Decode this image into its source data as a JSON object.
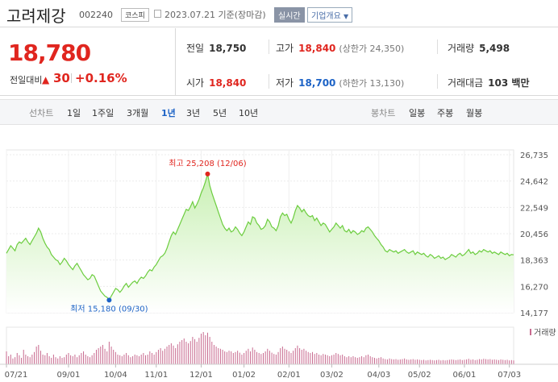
{
  "header": {
    "company_name": "고려제강",
    "code": "002240",
    "market": "코스피",
    "date": "2023.07.21 기준(장마감)",
    "realtime_label": "실시간",
    "company_info_label": "기업개요"
  },
  "summary": {
    "current_price": "18,780",
    "change_label": "전일대비",
    "change_value": "30",
    "change_pct": "+0.16%",
    "prev_close_label": "전일",
    "prev_close": "18,750",
    "high_label": "고가",
    "high": "18,840",
    "upper_limit": "(상한가 24,350)",
    "volume_label": "거래량",
    "volume": "5,498",
    "open_label": "시가",
    "open": "18,840",
    "low_label": "저가",
    "low": "18,700",
    "lower_limit": "(하한가 13,130)",
    "amount_label": "거래대금",
    "amount": "103 백만"
  },
  "period_bar": {
    "line_title": "선차트",
    "line_periods": [
      "1일",
      "1주일",
      "3개월",
      "1년",
      "3년",
      "5년",
      "10년"
    ],
    "active": "1년",
    "candle_title": "봉차트",
    "candle_periods": [
      "일봉",
      "주봉",
      "월봉"
    ]
  },
  "colors": {
    "up": "#e0261f",
    "down": "#1d63c6",
    "line": "#6ccd3f",
    "fill_top": "#c9f0b4",
    "fill_bottom": "#ffffff",
    "volume_bar": "#c86a8f"
  },
  "chart_data": {
    "type": "area",
    "title": "",
    "xlabel": "",
    "ylabel": "",
    "ylim": [
      14177,
      26735
    ],
    "y_ticks": [
      26735,
      24642,
      22549,
      20456,
      18363,
      16270,
      14177
    ],
    "y_tick_labels": [
      "26,735",
      "24,642",
      "22,549",
      "20,456",
      "18,363",
      "16,270",
      "14,177"
    ],
    "x_tick_labels": [
      "07/21",
      "09/01",
      "10/04",
      "11/01",
      "12/01",
      "01/02",
      "02/01",
      "03/02",
      "04/03",
      "05/02",
      "06/01",
      "07/03"
    ],
    "x_tick_index": [
      0,
      29,
      51,
      70,
      91,
      111,
      132,
      152,
      174,
      193,
      214,
      235
    ],
    "max_label": "최고 25,208 (12/06)",
    "min_label": "최저 15,180 (09/30)",
    "max_index": 94,
    "min_index": 48,
    "volume_label": "거래량",
    "grid": true,
    "legend": "none",
    "series": [
      {
        "values": [
          18900,
          19200,
          19500,
          19300,
          19100,
          19600,
          19800,
          19700,
          19900,
          20100,
          19800,
          19600,
          19900,
          20200,
          20500,
          20900,
          20600,
          20100,
          19700,
          19400,
          19200,
          18800,
          18600,
          18400,
          18300,
          18000,
          18200,
          18500,
          18300,
          18000,
          17800,
          17600,
          17900,
          18100,
          17800,
          17500,
          17200,
          17000,
          16800,
          16900,
          17200,
          17100,
          16700,
          16300,
          15900,
          15700,
          15500,
          15400,
          15180,
          15500,
          15800,
          16100,
          16000,
          15800,
          16000,
          16300,
          16500,
          16200,
          16400,
          16600,
          16700,
          16500,
          16800,
          17000,
          16900,
          17100,
          17400,
          17600,
          17500,
          17800,
          18000,
          18300,
          18600,
          18700,
          18900,
          19300,
          19800,
          20300,
          20600,
          20400,
          20800,
          21200,
          21600,
          22000,
          22400,
          22300,
          22600,
          23000,
          22500,
          22800,
          23200,
          23700,
          24100,
          24600,
          25208,
          24300,
          23700,
          23200,
          22700,
          22200,
          21700,
          21200,
          20900,
          20700,
          20900,
          20600,
          20700,
          21000,
          20800,
          20500,
          20300,
          20600,
          21000,
          21400,
          21200,
          21800,
          21700,
          21300,
          21100,
          20800,
          20900,
          21100,
          21600,
          21400,
          21000,
          20900,
          20700,
          21100,
          21800,
          22100,
          21900,
          22000,
          21600,
          21300,
          21700,
          22300,
          22700,
          22500,
          22200,
          22400,
          22100,
          21900,
          21800,
          21900,
          21500,
          21700,
          21400,
          21100,
          21300,
          21200,
          20900,
          20600,
          20800,
          21000,
          21300,
          21100,
          20900,
          21100,
          20700,
          20600,
          20800,
          20500,
          20700,
          20600,
          20400,
          20500,
          20700,
          20600,
          20900,
          21000,
          20800,
          20600,
          20300,
          20100,
          19900,
          19600,
          19400,
          19100,
          19000,
          19200,
          19100,
          19000,
          19100,
          18900,
          19000,
          19100,
          19200,
          19000,
          18900,
          19000,
          19100,
          18800,
          19000,
          18900,
          18800,
          18900,
          18700,
          18600,
          18800,
          18700,
          18500,
          18600,
          18700,
          18500,
          18600,
          18400,
          18500,
          18600,
          18800,
          18700,
          18600,
          18800,
          18900,
          18700,
          18800,
          19000,
          19200,
          18900,
          19000,
          18800,
          18900,
          19100,
          19000,
          19200,
          19100,
          19000,
          19100,
          18900,
          19000,
          18900,
          18800,
          19000,
          18900,
          18800,
          18900,
          18700,
          18800,
          18780
        ]
      }
    ],
    "volume": [
      40,
      25,
      30,
      18,
      22,
      35,
      28,
      20,
      45,
      30,
      25,
      22,
      30,
      38,
      55,
      60,
      42,
      30,
      28,
      35,
      25,
      20,
      30,
      22,
      18,
      25,
      20,
      22,
      30,
      35,
      28,
      25,
      30,
      22,
      28,
      35,
      40,
      30,
      25,
      22,
      28,
      35,
      45,
      50,
      55,
      60,
      48,
      40,
      70,
      55,
      45,
      38,
      30,
      28,
      25,
      30,
      35,
      28,
      22,
      25,
      30,
      28,
      25,
      30,
      35,
      28,
      30,
      40,
      35,
      30,
      38,
      45,
      50,
      42,
      48,
      55,
      60,
      65,
      58,
      50,
      62,
      70,
      75,
      80,
      70,
      65,
      72,
      85,
      78,
      70,
      82,
      95,
      100,
      90,
      98,
      85,
      70,
      60,
      55,
      50,
      48,
      45,
      40,
      38,
      42,
      40,
      35,
      38,
      42,
      36,
      30,
      35,
      42,
      48,
      40,
      52,
      45,
      38,
      35,
      32,
      35,
      40,
      48,
      42,
      36,
      32,
      30,
      38,
      50,
      55,
      48,
      45,
      40,
      35,
      42,
      50,
      58,
      50,
      45,
      48,
      42,
      38,
      35,
      38,
      32,
      35,
      30,
      28,
      32,
      30,
      28,
      25,
      28,
      30,
      35,
      32,
      28,
      30,
      25,
      22,
      25,
      22,
      25,
      22,
      20,
      22,
      25,
      22,
      28,
      30,
      25,
      22,
      20,
      18,
      20,
      22,
      18,
      16,
      15,
      18,
      16,
      15,
      16,
      14,
      15,
      16,
      18,
      15,
      14,
      15,
      16,
      14,
      15,
      14,
      13,
      14,
      12,
      13,
      14,
      13,
      12,
      13,
      14,
      12,
      13,
      12,
      13,
      14,
      15,
      14,
      13,
      14,
      15,
      13,
      14,
      15,
      17,
      14,
      15,
      13,
      14,
      16,
      15,
      17,
      16,
      15,
      16,
      14,
      15,
      14,
      13,
      15,
      14,
      13,
      14,
      12,
      13,
      12
    ]
  }
}
